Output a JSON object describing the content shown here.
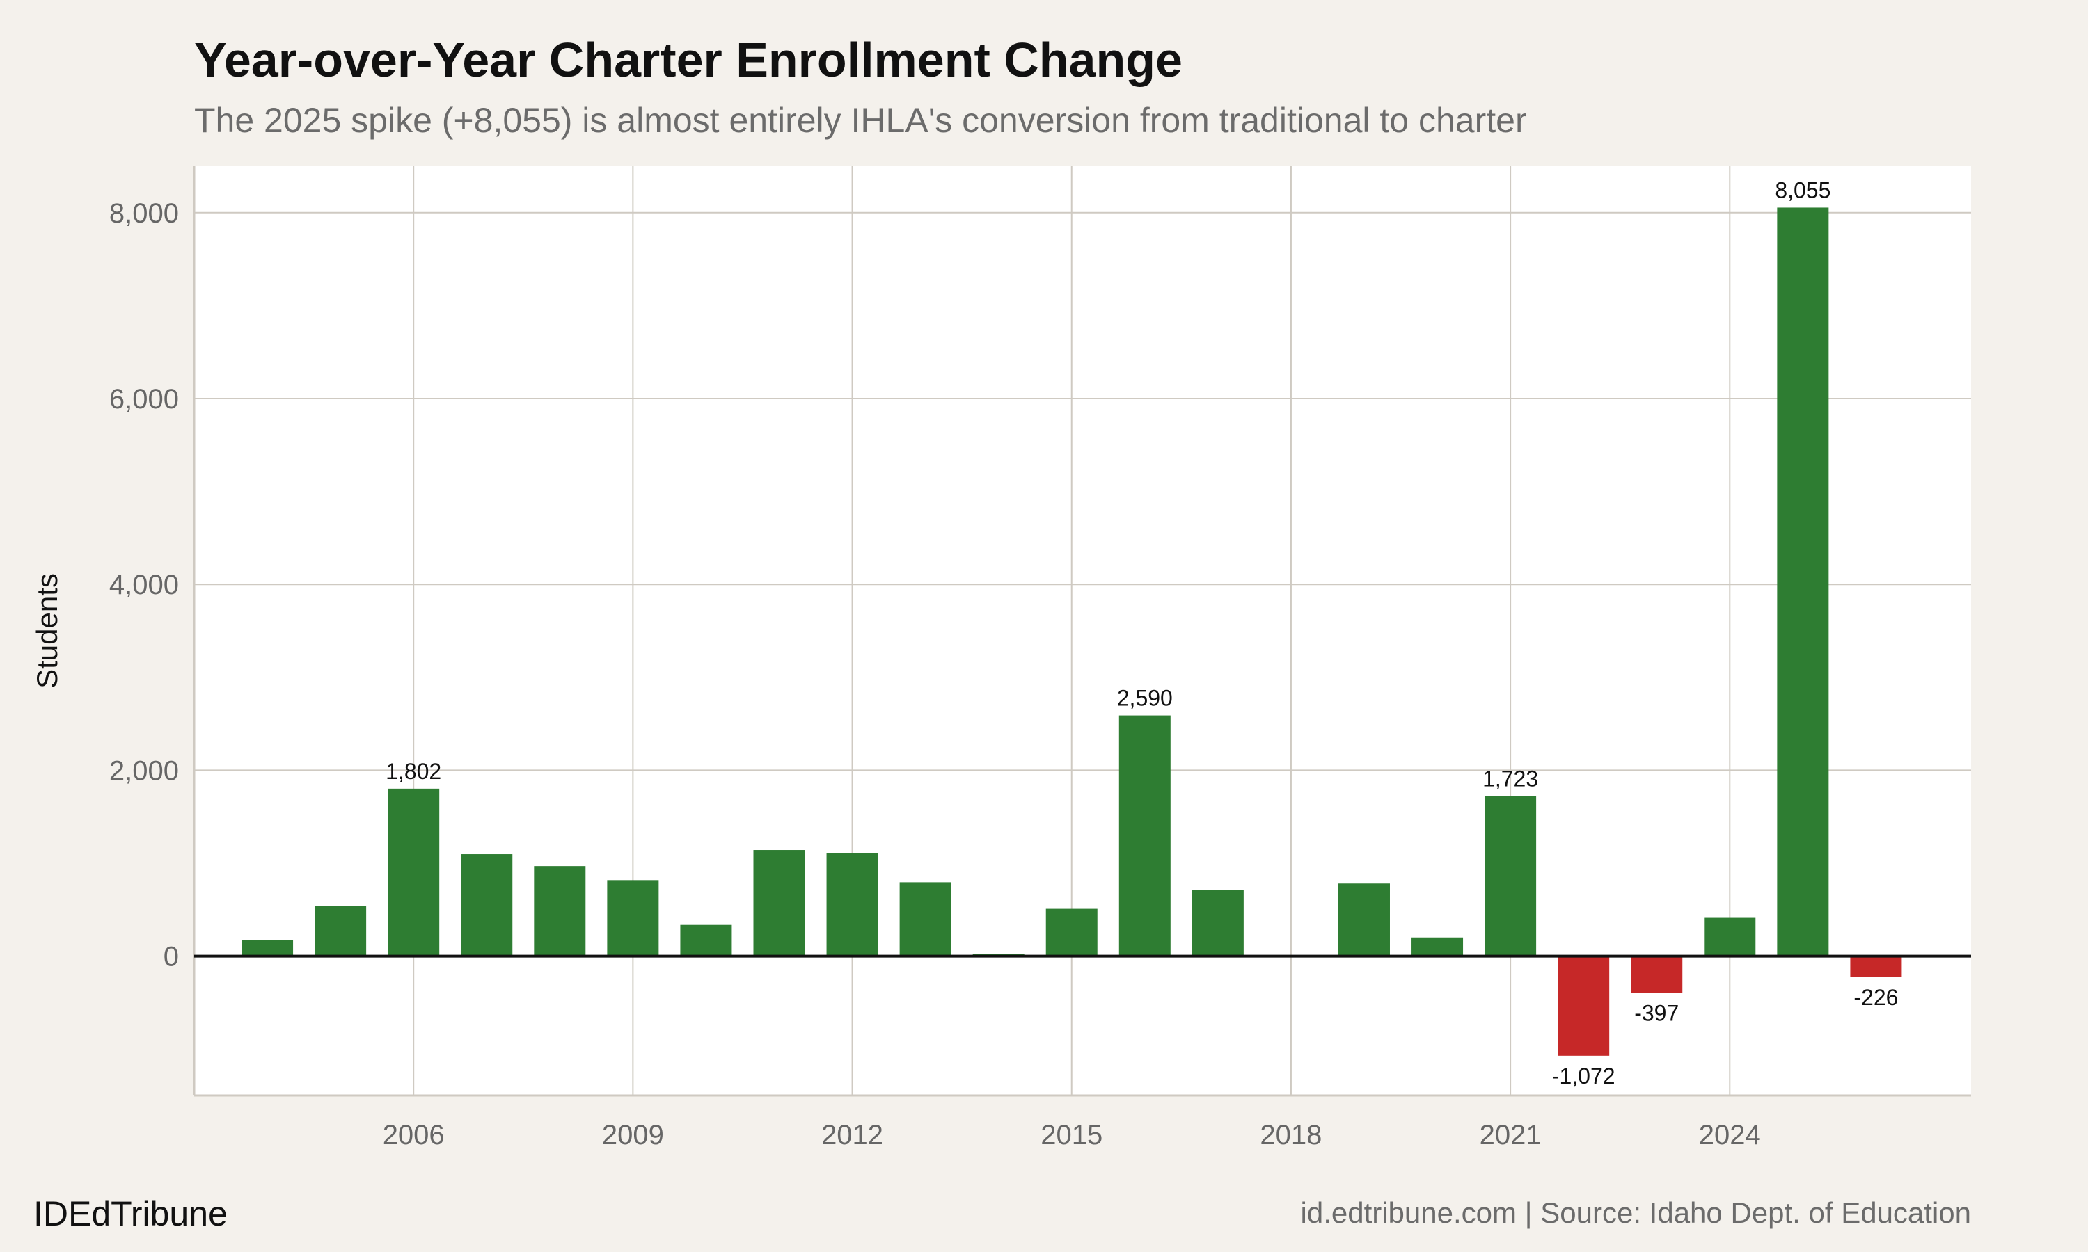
{
  "chart_data": {
    "type": "bar",
    "title": "Year-over-Year Charter Enrollment Change",
    "subtitle": "The 2025 spike (+8,055) is almost entirely IHLA's conversion from traditional to charter",
    "xlabel": "",
    "ylabel": "Students",
    "ylim": [
      -1500,
      8500
    ],
    "xlim": [
      2003,
      2027.3
    ],
    "grid": true,
    "x_ticks": [
      2006,
      2009,
      2012,
      2015,
      2018,
      2021,
      2024
    ],
    "y_ticks": [
      0,
      2000,
      4000,
      6000,
      8000
    ],
    "y_tick_labels": [
      "0",
      "2,000",
      "4,000",
      "6,000",
      "8,000"
    ],
    "categories": [
      2004,
      2005,
      2006,
      2007,
      2008,
      2009,
      2010,
      2011,
      2012,
      2013,
      2014,
      2015,
      2016,
      2017,
      2018,
      2019,
      2020,
      2021,
      2022,
      2023,
      2024,
      2025,
      2026
    ],
    "values": [
      171,
      540,
      1802,
      1097,
      969,
      818,
      336,
      1142,
      1112,
      795,
      20,
      509,
      2590,
      713,
      0,
      781,
      201,
      1723,
      -1072,
      -397,
      412,
      8055,
      -226
    ],
    "data_labels": {
      "2006": "1,802",
      "2016": "2,590",
      "2021": "1,723",
      "2022": "-1,072",
      "2023": "-397",
      "2025": "8,055",
      "2026": "-226"
    },
    "colors": {
      "positive": "#2e7d32",
      "negative": "#c62828",
      "background": "#f4f1ec",
      "panel": "#ffffff",
      "grid": "#cfcac2"
    }
  },
  "footer": {
    "brand": "IDEdTribune",
    "source": "id.edtribune.com | Source: Idaho Dept. of Education"
  }
}
